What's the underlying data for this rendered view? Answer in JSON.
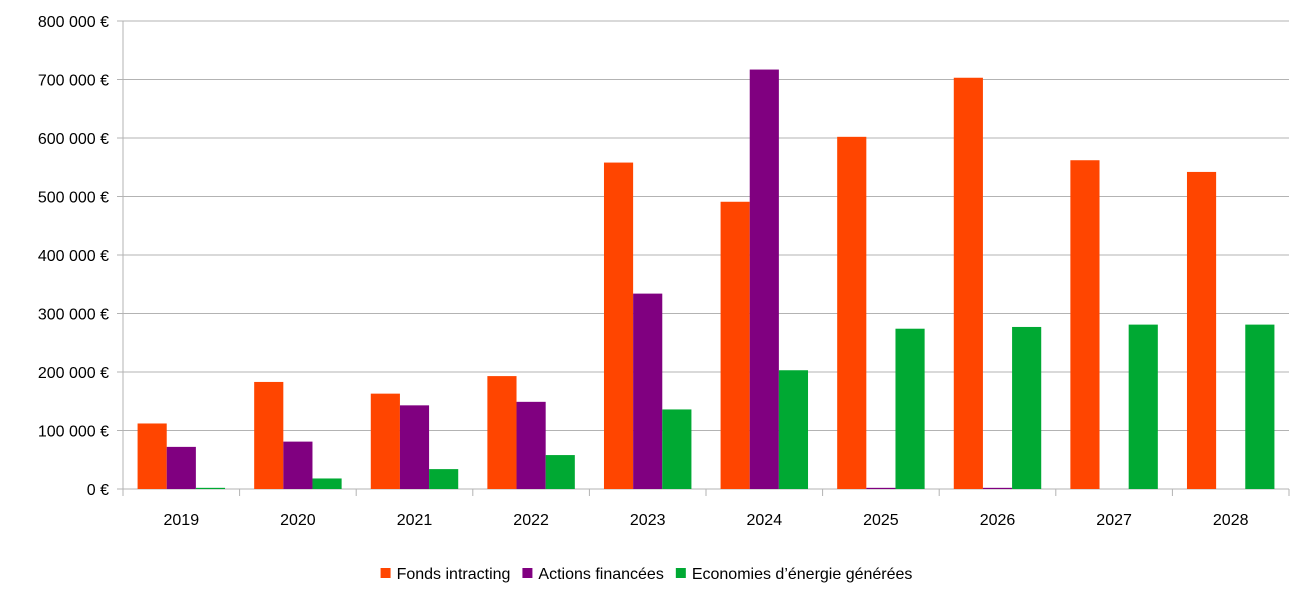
{
  "chart_data": {
    "type": "bar",
    "title": "",
    "xlabel": "",
    "ylabel": "",
    "categories": [
      "2019",
      "2020",
      "2021",
      "2022",
      "2023",
      "2024",
      "2025",
      "2026",
      "2027",
      "2028"
    ],
    "series": [
      {
        "name": "Fonds intracting",
        "color": "#ff4500",
        "values": [
          112000,
          183000,
          163000,
          193000,
          558000,
          491000,
          602000,
          703000,
          562000,
          542000
        ]
      },
      {
        "name": "Actions financées",
        "color": "#800080",
        "values": [
          72000,
          81000,
          143000,
          149000,
          334000,
          717000,
          2000,
          2000,
          0,
          0
        ]
      },
      {
        "name": "Economies d’énergie générées",
        "color": "#00a933",
        "values": [
          2000,
          18000,
          34000,
          58000,
          136000,
          203000,
          274000,
          277000,
          281000,
          281000
        ]
      }
    ],
    "ylim": [
      0,
      800000
    ],
    "y_ticks": [
      0,
      100000,
      200000,
      300000,
      400000,
      500000,
      600000,
      700000,
      800000
    ],
    "y_tick_labels": [
      "0 €",
      "100 000 €",
      "200 000 €",
      "300 000 €",
      "400 000 €",
      "500 000 €",
      "600 000 €",
      "700 000 €",
      "800 000 €"
    ],
    "grid": true,
    "legend_position": "bottom"
  }
}
